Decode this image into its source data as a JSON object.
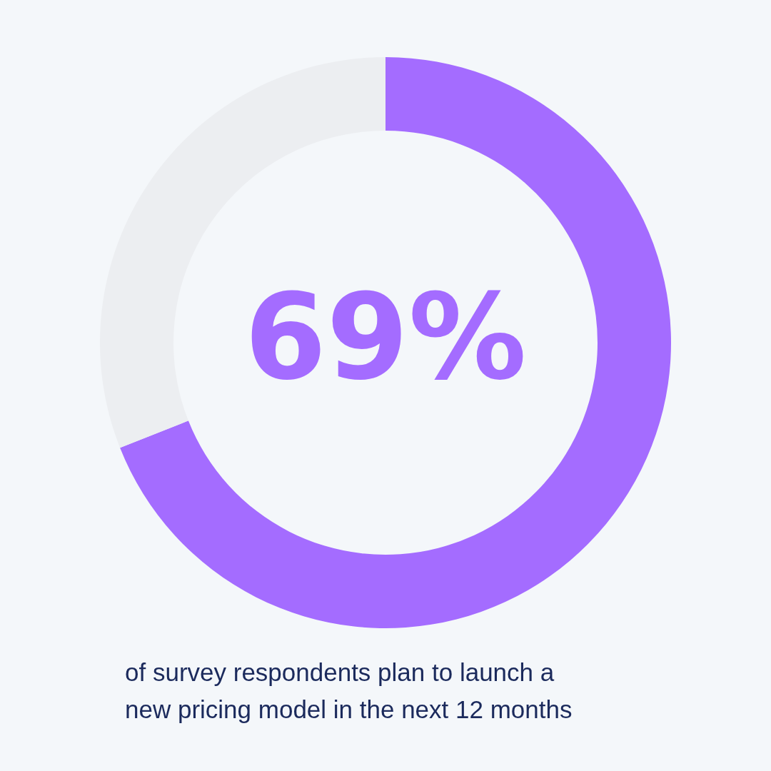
{
  "chart_data": {
    "type": "donut",
    "categories": [
      null,
      null
    ],
    "values": [
      69,
      31
    ],
    "colors": [
      "#a46cff",
      "#eceef1"
    ],
    "value_labels": [
      "69%",
      null
    ],
    "annotations": [
      "of survey respondents plan to launch a new pricing model in the next 12 months"
    ]
  }
}
